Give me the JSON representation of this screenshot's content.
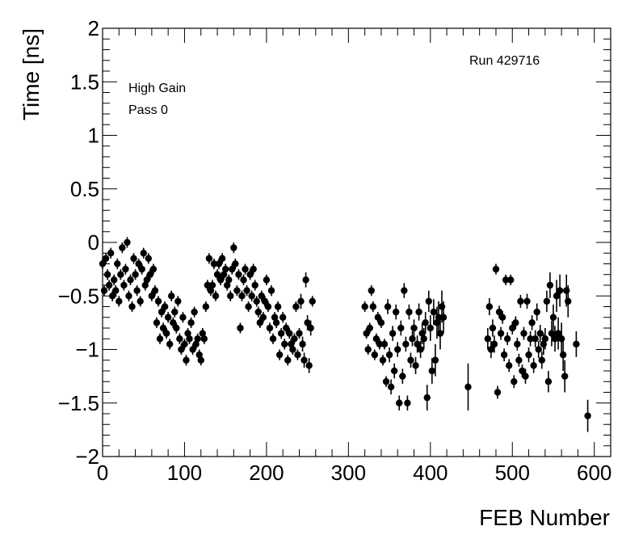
{
  "chart_data": {
    "type": "scatter",
    "xlabel": "FEB Number",
    "ylabel": "Time [ns]",
    "xlim": [
      0,
      620
    ],
    "ylim": [
      -2,
      2
    ],
    "x_ticks": [
      0,
      100,
      200,
      300,
      400,
      500,
      600
    ],
    "y_ticks": [
      -2,
      -1.5,
      -1,
      -0.5,
      0,
      0.5,
      1,
      1.5,
      2
    ],
    "y_tick_labels": [
      "−2",
      "−1.5",
      "−1",
      "−0.5",
      "0",
      "0.5",
      "1",
      "1.5",
      "2"
    ],
    "grid": false,
    "annotations": {
      "gain": "High Gain",
      "pass": "Pass 0",
      "run": "Run 429716"
    },
    "marker_color": "#000000",
    "points": [
      [
        0,
        -0.2,
        0.05
      ],
      [
        2,
        -0.45,
        0.05
      ],
      [
        4,
        -0.15,
        0.05
      ],
      [
        6,
        -0.3,
        0.05
      ],
      [
        8,
        -0.4,
        0.05
      ],
      [
        10,
        -0.1,
        0.05
      ],
      [
        12,
        -0.5,
        0.05
      ],
      [
        14,
        -0.35,
        0.05
      ],
      [
        16,
        -0.45,
        0.05
      ],
      [
        18,
        -0.2,
        0.05
      ],
      [
        20,
        -0.55,
        0.05
      ],
      [
        22,
        -0.3,
        0.05
      ],
      [
        24,
        -0.05,
        0.05
      ],
      [
        26,
        -0.4,
        0.05
      ],
      [
        28,
        -0.25,
        0.05
      ],
      [
        30,
        0.0,
        0.05
      ],
      [
        32,
        -0.5,
        0.05
      ],
      [
        34,
        -0.35,
        0.05
      ],
      [
        36,
        -0.6,
        0.05
      ],
      [
        38,
        -0.15,
        0.05
      ],
      [
        40,
        -0.3,
        0.05
      ],
      [
        42,
        -0.45,
        0.05
      ],
      [
        44,
        -0.2,
        0.05
      ],
      [
        46,
        -0.55,
        0.05
      ],
      [
        48,
        -0.25,
        0.05
      ],
      [
        50,
        -0.1,
        0.05
      ],
      [
        52,
        -0.4,
        0.05
      ],
      [
        54,
        -0.35,
        0.05
      ],
      [
        56,
        -0.15,
        0.05
      ],
      [
        58,
        -0.3,
        0.05
      ],
      [
        60,
        -0.5,
        0.05
      ],
      [
        62,
        -0.25,
        0.05
      ],
      [
        64,
        -0.45,
        0.05
      ],
      [
        66,
        -0.75,
        0.05
      ],
      [
        68,
        -0.55,
        0.05
      ],
      [
        70,
        -0.9,
        0.05
      ],
      [
        72,
        -0.65,
        0.05
      ],
      [
        74,
        -0.8,
        0.05
      ],
      [
        76,
        -0.6,
        0.05
      ],
      [
        78,
        -0.85,
        0.05
      ],
      [
        80,
        -0.7,
        0.05
      ],
      [
        82,
        -0.95,
        0.05
      ],
      [
        84,
        -0.5,
        0.05
      ],
      [
        86,
        -0.75,
        0.05
      ],
      [
        88,
        -0.65,
        0.05
      ],
      [
        90,
        -0.8,
        0.05
      ],
      [
        92,
        -0.55,
        0.05
      ],
      [
        94,
        -0.9,
        0.05
      ],
      [
        96,
        -1.0,
        0.05
      ],
      [
        98,
        -0.7,
        0.05
      ],
      [
        100,
        -0.95,
        0.05
      ],
      [
        102,
        -1.1,
        0.05
      ],
      [
        104,
        -0.85,
        0.05
      ],
      [
        106,
        -0.9,
        0.05
      ],
      [
        108,
        -0.75,
        0.05
      ],
      [
        110,
        -1.0,
        0.05
      ],
      [
        112,
        -0.65,
        0.05
      ],
      [
        114,
        -0.95,
        0.05
      ],
      [
        116,
        -0.9,
        0.05
      ],
      [
        118,
        -1.05,
        0.05
      ],
      [
        120,
        -1.1,
        0.05
      ],
      [
        122,
        -0.85,
        0.05
      ],
      [
        124,
        -0.9,
        0.05
      ],
      [
        126,
        -0.6,
        0.05
      ],
      [
        128,
        -0.4,
        0.05
      ],
      [
        130,
        -0.15,
        0.05
      ],
      [
        132,
        -0.45,
        0.05
      ],
      [
        134,
        -0.4,
        0.05
      ],
      [
        136,
        -0.2,
        0.05
      ],
      [
        138,
        -0.5,
        0.05
      ],
      [
        140,
        -0.3,
        0.05
      ],
      [
        142,
        -0.2,
        0.05
      ],
      [
        144,
        -0.35,
        0.05
      ],
      [
        146,
        -0.15,
        0.05
      ],
      [
        148,
        -0.3,
        0.05
      ],
      [
        150,
        -0.25,
        0.05
      ],
      [
        152,
        -0.4,
        0.05
      ],
      [
        154,
        -0.35,
        0.05
      ],
      [
        156,
        -0.5,
        0.05
      ],
      [
        158,
        -0.25,
        0.05
      ],
      [
        160,
        -0.05,
        0.05
      ],
      [
        162,
        -0.2,
        0.05
      ],
      [
        164,
        -0.45,
        0.05
      ],
      [
        166,
        -0.3,
        0.05
      ],
      [
        168,
        -0.8,
        0.05
      ],
      [
        170,
        -0.5,
        0.05
      ],
      [
        172,
        -0.35,
        0.05
      ],
      [
        174,
        -0.25,
        0.05
      ],
      [
        176,
        -0.45,
        0.05
      ],
      [
        178,
        -0.6,
        0.05
      ],
      [
        180,
        -0.3,
        0.05
      ],
      [
        182,
        -0.5,
        0.05
      ],
      [
        184,
        -0.25,
        0.05
      ],
      [
        186,
        -0.4,
        0.05
      ],
      [
        188,
        -0.55,
        0.05
      ],
      [
        190,
        -0.65,
        0.05
      ],
      [
        192,
        -0.75,
        0.05
      ],
      [
        194,
        -0.5,
        0.05
      ],
      [
        196,
        -0.7,
        0.05
      ],
      [
        198,
        -0.55,
        0.05
      ],
      [
        200,
        -0.35,
        0.05
      ],
      [
        202,
        -0.6,
        0.05
      ],
      [
        204,
        -0.8,
        0.05
      ],
      [
        206,
        -0.45,
        0.05
      ],
      [
        208,
        -0.9,
        0.05
      ],
      [
        210,
        -0.7,
        0.05
      ],
      [
        212,
        -0.75,
        0.05
      ],
      [
        214,
        -0.6,
        0.05
      ],
      [
        216,
        -1.05,
        0.05
      ],
      [
        218,
        -0.85,
        0.05
      ],
      [
        220,
        -0.7,
        0.05
      ],
      [
        222,
        -0.95,
        0.05
      ],
      [
        224,
        -0.8,
        0.05
      ],
      [
        226,
        -1.1,
        0.05
      ],
      [
        228,
        -0.85,
        0.05
      ],
      [
        230,
        -0.95,
        0.05
      ],
      [
        232,
        -1.0,
        0.05
      ],
      [
        234,
        -0.9,
        0.05
      ],
      [
        236,
        -0.6,
        0.05
      ],
      [
        238,
        -1.05,
        0.05
      ],
      [
        240,
        -0.85,
        0.05
      ],
      [
        242,
        -0.55,
        0.07
      ],
      [
        244,
        -0.95,
        0.07
      ],
      [
        246,
        -1.1,
        0.07
      ],
      [
        248,
        -0.35,
        0.07
      ],
      [
        250,
        -0.75,
        0.07
      ],
      [
        252,
        -1.15,
        0.07
      ],
      [
        254,
        -0.8,
        0.07
      ],
      [
        256,
        -0.55,
        0.05
      ],
      [
        320,
        -0.6,
        0.05
      ],
      [
        322,
        -0.85,
        0.05
      ],
      [
        324,
        -1.0,
        0.05
      ],
      [
        326,
        -0.8,
        0.05
      ],
      [
        328,
        -0.45,
        0.05
      ],
      [
        330,
        -0.6,
        0.05
      ],
      [
        332,
        -1.05,
        0.05
      ],
      [
        334,
        -0.9,
        0.05
      ],
      [
        336,
        -0.7,
        0.05
      ],
      [
        338,
        -0.95,
        0.05
      ],
      [
        340,
        -0.75,
        0.05
      ],
      [
        342,
        -1.1,
        0.05
      ],
      [
        344,
        -0.95,
        0.05
      ],
      [
        346,
        -1.3,
        0.05
      ],
      [
        348,
        -0.6,
        0.07
      ],
      [
        350,
        -1.05,
        0.07
      ],
      [
        352,
        -1.35,
        0.07
      ],
      [
        354,
        -0.85,
        0.07
      ],
      [
        356,
        -1.2,
        0.07
      ],
      [
        358,
        -0.65,
        0.07
      ],
      [
        360,
        -1.0,
        0.07
      ],
      [
        362,
        -1.5,
        0.07
      ],
      [
        364,
        -0.8,
        0.07
      ],
      [
        366,
        -1.25,
        0.07
      ],
      [
        368,
        -0.45,
        0.07
      ],
      [
        370,
        -0.95,
        0.07
      ],
      [
        372,
        -1.5,
        0.07
      ],
      [
        374,
        -0.65,
        0.07
      ],
      [
        376,
        -1.1,
        0.07
      ],
      [
        378,
        -0.9,
        0.07
      ],
      [
        380,
        -0.8,
        0.08
      ],
      [
        382,
        -1.15,
        0.08
      ],
      [
        384,
        -0.95,
        0.08
      ],
      [
        386,
        -0.65,
        0.08
      ],
      [
        388,
        -1.0,
        0.08
      ],
      [
        390,
        -0.85,
        0.1
      ],
      [
        392,
        -0.9,
        0.1
      ],
      [
        394,
        -0.75,
        0.1
      ],
      [
        396,
        -1.45,
        0.12
      ],
      [
        398,
        -0.55,
        0.1
      ],
      [
        400,
        -0.8,
        0.12
      ],
      [
        402,
        -1.2,
        0.12
      ],
      [
        404,
        -0.65,
        0.12
      ],
      [
        406,
        -1.1,
        0.15
      ],
      [
        408,
        -0.75,
        0.15
      ],
      [
        410,
        -0.7,
        0.15
      ],
      [
        412,
        -0.85,
        0.15
      ],
      [
        414,
        -0.6,
        0.15
      ],
      [
        416,
        -0.7,
        0.15
      ],
      [
        446,
        -1.35,
        0.22
      ],
      [
        470,
        -0.9,
        0.1
      ],
      [
        472,
        -0.6,
        0.08
      ],
      [
        474,
        -1.0,
        0.08
      ],
      [
        476,
        -0.8,
        0.08
      ],
      [
        478,
        -0.95,
        0.08
      ],
      [
        480,
        -0.25,
        0.05
      ],
      [
        482,
        -1.4,
        0.06
      ],
      [
        484,
        -0.65,
        0.06
      ],
      [
        486,
        -0.85,
        0.06
      ],
      [
        488,
        -0.7,
        0.06
      ],
      [
        490,
        -1.05,
        0.06
      ],
      [
        492,
        -0.35,
        0.05
      ],
      [
        494,
        -0.9,
        0.06
      ],
      [
        496,
        -1.15,
        0.06
      ],
      [
        498,
        -0.35,
        0.05
      ],
      [
        500,
        -0.8,
        0.06
      ],
      [
        502,
        -1.3,
        0.06
      ],
      [
        504,
        -0.75,
        0.06
      ],
      [
        506,
        -0.95,
        0.06
      ],
      [
        508,
        -1.1,
        0.06
      ],
      [
        510,
        -0.55,
        0.06
      ],
      [
        512,
        -1.2,
        0.06
      ],
      [
        514,
        -0.85,
        0.06
      ],
      [
        516,
        -1.25,
        0.07
      ],
      [
        518,
        -0.55,
        0.07
      ],
      [
        520,
        -1.05,
        0.07
      ],
      [
        522,
        -0.9,
        0.07
      ],
      [
        524,
        -0.75,
        0.07
      ],
      [
        526,
        -1.15,
        0.07
      ],
      [
        528,
        -0.9,
        0.08
      ],
      [
        530,
        -0.65,
        0.08
      ],
      [
        532,
        -1.0,
        0.08
      ],
      [
        534,
        -0.85,
        0.08
      ],
      [
        536,
        -1.1,
        0.08
      ],
      [
        538,
        -0.95,
        0.1
      ],
      [
        540,
        -0.9,
        0.1
      ],
      [
        542,
        -0.55,
        0.1
      ],
      [
        544,
        -1.3,
        0.1
      ],
      [
        546,
        -0.4,
        0.12
      ],
      [
        548,
        -0.85,
        0.12
      ],
      [
        550,
        -0.7,
        0.12
      ],
      [
        552,
        -0.9,
        0.12
      ],
      [
        554,
        -0.5,
        0.15
      ],
      [
        556,
        -0.85,
        0.15
      ],
      [
        558,
        -0.45,
        0.15
      ],
      [
        560,
        -0.9,
        0.15
      ],
      [
        562,
        -1.05,
        0.15
      ],
      [
        564,
        -1.25,
        0.15
      ],
      [
        566,
        -0.45,
        0.15
      ],
      [
        568,
        -0.55,
        0.15
      ],
      [
        578,
        -0.95,
        0.12
      ],
      [
        592,
        -1.62,
        0.15
      ]
    ]
  }
}
